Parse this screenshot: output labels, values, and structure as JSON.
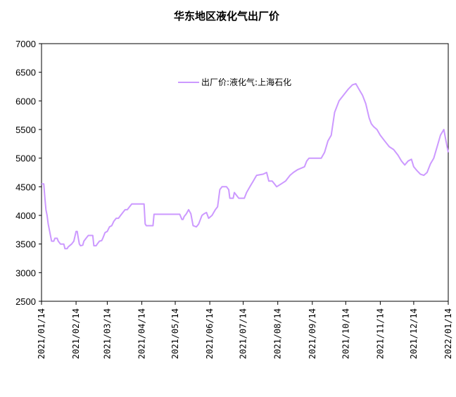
{
  "chart_data": {
    "type": "line",
    "title": "华东地区液化气出厂价",
    "xlabel": "",
    "ylabel": "",
    "ylim": [
      2500,
      7000
    ],
    "yticks": [
      2500,
      3000,
      3500,
      4000,
      4500,
      5000,
      5500,
      6000,
      6500,
      7000
    ],
    "xlim": [
      "2021/01/14",
      "2022/01/14"
    ],
    "xticks": [
      "2021/01/14",
      "2021/02/14",
      "2021/03/14",
      "2021/04/14",
      "2021/05/14",
      "2021/06/14",
      "2021/07/14",
      "2021/08/14",
      "2021/09/14",
      "2021/10/14",
      "2021/11/14",
      "2021/12/14",
      "2022/01/14"
    ],
    "grid": false,
    "legend_position": "top-center",
    "series": [
      {
        "name": "出厂价:液化气:上海石化",
        "color": "#cc99ff",
        "points": [
          [
            "2021/01/14",
            4550
          ],
          [
            "2021/01/16",
            4550
          ],
          [
            "2021/01/17",
            4300
          ],
          [
            "2021/01/18",
            4100
          ],
          [
            "2021/01/19",
            4000
          ],
          [
            "2021/01/20",
            3850
          ],
          [
            "2021/01/21",
            3750
          ],
          [
            "2021/01/22",
            3650
          ],
          [
            "2021/01/23",
            3550
          ],
          [
            "2021/01/25",
            3550
          ],
          [
            "2021/01/26",
            3600
          ],
          [
            "2021/01/28",
            3600
          ],
          [
            "2021/01/29",
            3550
          ],
          [
            "2021/01/31",
            3500
          ],
          [
            "2021/02/03",
            3500
          ],
          [
            "2021/02/04",
            3420
          ],
          [
            "2021/02/06",
            3420
          ],
          [
            "2021/02/07",
            3450
          ],
          [
            "2021/02/10",
            3500
          ],
          [
            "2021/02/12",
            3550
          ],
          [
            "2021/02/14",
            3720
          ],
          [
            "2021/02/15",
            3720
          ],
          [
            "2021/02/16",
            3600
          ],
          [
            "2021/02/17",
            3500
          ],
          [
            "2021/02/18",
            3470
          ],
          [
            "2021/02/20",
            3480
          ],
          [
            "2021/02/21",
            3550
          ],
          [
            "2021/02/23",
            3600
          ],
          [
            "2021/02/25",
            3650
          ],
          [
            "2021/02/28",
            3650
          ],
          [
            "2021/03/01",
            3650
          ],
          [
            "2021/03/02",
            3470
          ],
          [
            "2021/03/04",
            3470
          ],
          [
            "2021/03/05",
            3500
          ],
          [
            "2021/03/07",
            3550
          ],
          [
            "2021/03/09",
            3560
          ],
          [
            "2021/03/10",
            3600
          ],
          [
            "2021/03/12",
            3700
          ],
          [
            "2021/03/14",
            3720
          ],
          [
            "2021/03/16",
            3800
          ],
          [
            "2021/03/18",
            3820
          ],
          [
            "2021/03/20",
            3900
          ],
          [
            "2021/03/22",
            3950
          ],
          [
            "2021/03/24",
            3950
          ],
          [
            "2021/03/26",
            4000
          ],
          [
            "2021/03/28",
            4050
          ],
          [
            "2021/03/30",
            4100
          ],
          [
            "2021/04/01",
            4100
          ],
          [
            "2021/04/03",
            4150
          ],
          [
            "2021/04/05",
            4200
          ],
          [
            "2021/04/11",
            4200
          ],
          [
            "2021/04/14",
            4200
          ],
          [
            "2021/04/16",
            4200
          ],
          [
            "2021/04/17",
            3850
          ],
          [
            "2021/04/18",
            3820
          ],
          [
            "2021/04/24",
            3820
          ],
          [
            "2021/04/25",
            4020
          ],
          [
            "2021/05/14",
            4020
          ],
          [
            "2021/05/18",
            4020
          ],
          [
            "2021/05/20",
            3930
          ],
          [
            "2021/05/21",
            3930
          ],
          [
            "2021/05/22",
            3980
          ],
          [
            "2021/05/24",
            4030
          ],
          [
            "2021/05/26",
            4100
          ],
          [
            "2021/05/28",
            4030
          ],
          [
            "2021/05/30",
            3820
          ],
          [
            "2021/06/02",
            3800
          ],
          [
            "2021/06/04",
            3850
          ],
          [
            "2021/06/07",
            4000
          ],
          [
            "2021/06/09",
            4030
          ],
          [
            "2021/06/11",
            4050
          ],
          [
            "2021/06/13",
            3950
          ],
          [
            "2021/06/16",
            4000
          ],
          [
            "2021/06/19",
            4100
          ],
          [
            "2021/06/21",
            4150
          ],
          [
            "2021/06/23",
            4450
          ],
          [
            "2021/06/25",
            4500
          ],
          [
            "2021/06/29",
            4500
          ],
          [
            "2021/07/01",
            4450
          ],
          [
            "2021/07/02",
            4300
          ],
          [
            "2021/07/05",
            4300
          ],
          [
            "2021/07/06",
            4400
          ],
          [
            "2021/07/08",
            4350
          ],
          [
            "2021/07/10",
            4300
          ],
          [
            "2021/07/15",
            4300
          ],
          [
            "2021/07/17",
            4400
          ],
          [
            "2021/07/20",
            4500
          ],
          [
            "2021/07/23",
            4600
          ],
          [
            "2021/07/26",
            4700
          ],
          [
            "2021/08/01",
            4720
          ],
          [
            "2021/08/04",
            4750
          ],
          [
            "2021/08/06",
            4600
          ],
          [
            "2021/08/09",
            4600
          ],
          [
            "2021/08/11",
            4550
          ],
          [
            "2021/08/13",
            4500
          ],
          [
            "2021/08/17",
            4550
          ],
          [
            "2021/08/21",
            4600
          ],
          [
            "2021/08/25",
            4700
          ],
          [
            "2021/08/28",
            4750
          ],
          [
            "2021/09/01",
            4800
          ],
          [
            "2021/09/07",
            4850
          ],
          [
            "2021/09/09",
            4950
          ],
          [
            "2021/09/11",
            5000
          ],
          [
            "2021/09/22",
            5000
          ],
          [
            "2021/09/25",
            5100
          ],
          [
            "2021/09/28",
            5300
          ],
          [
            "2021/10/01",
            5400
          ],
          [
            "2021/10/04",
            5800
          ],
          [
            "2021/10/08",
            6000
          ],
          [
            "2021/10/12",
            6100
          ],
          [
            "2021/10/16",
            6200
          ],
          [
            "2021/10/20",
            6280
          ],
          [
            "2021/10/23",
            6300
          ],
          [
            "2021/10/26",
            6200
          ],
          [
            "2021/10/29",
            6100
          ],
          [
            "2021/11/01",
            5950
          ],
          [
            "2021/11/04",
            5700
          ],
          [
            "2021/11/06",
            5600
          ],
          [
            "2021/11/08",
            5550
          ],
          [
            "2021/11/11",
            5500
          ],
          [
            "2021/11/14",
            5400
          ],
          [
            "2021/11/18",
            5300
          ],
          [
            "2021/11/22",
            5200
          ],
          [
            "2021/11/26",
            5150
          ],
          [
            "2021/11/30",
            5050
          ],
          [
            "2021/12/03",
            4950
          ],
          [
            "2021/12/06",
            4880
          ],
          [
            "2021/12/09",
            4950
          ],
          [
            "2021/12/12",
            4980
          ],
          [
            "2021/12/14",
            4850
          ],
          [
            "2021/12/17",
            4780
          ],
          [
            "2021/12/20",
            4720
          ],
          [
            "2021/12/23",
            4700
          ],
          [
            "2021/12/26",
            4750
          ],
          [
            "2021/12/29",
            4900
          ],
          [
            "2022/01/01",
            5000
          ],
          [
            "2022/01/04",
            5200
          ],
          [
            "2022/01/07",
            5400
          ],
          [
            "2022/01/10",
            5500
          ],
          [
            "2022/01/12",
            5300
          ],
          [
            "2022/01/14",
            5100
          ]
        ]
      }
    ]
  }
}
